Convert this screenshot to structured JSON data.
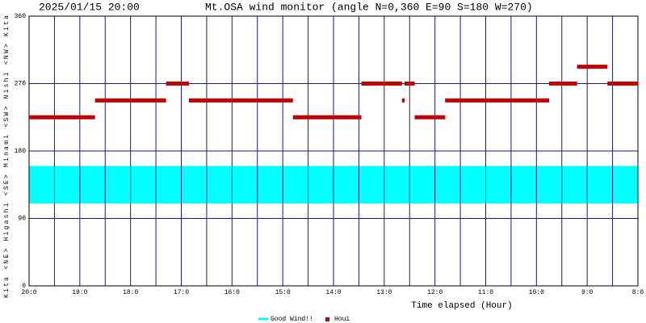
{
  "chart_data": {
    "type": "interval",
    "date": "2025/01/15 20:00",
    "title": "Mt.OSA wind monitor (angle N=0,360 E=90 S=180 W=270)",
    "y_label": "Kita <NE> Higashi <SE> Minami <SW> Nishi <NW> Kita",
    "x_label": "Time elapsed (Hour)",
    "xlim": [
      20,
      8
    ],
    "xticks": [
      {
        "value": 20,
        "label": "20:0"
      },
      {
        "value": 19,
        "label": "19:0"
      },
      {
        "value": 18,
        "label": "18:0"
      },
      {
        "value": 17,
        "label": "17:0"
      },
      {
        "value": 16,
        "label": "16:0"
      },
      {
        "value": 15,
        "label": "15:0"
      },
      {
        "value": 14,
        "label": "14:0"
      },
      {
        "value": 13,
        "label": "13:0"
      },
      {
        "value": 12,
        "label": "12:0"
      },
      {
        "value": 11,
        "label": "11:0"
      },
      {
        "value": 10,
        "label": "10:0"
      },
      {
        "value": 9,
        "label": "9:0"
      },
      {
        "value": 8,
        "label": "8:0"
      }
    ],
    "ylim": [
      0,
      360
    ],
    "yticks": [
      0,
      90,
      180,
      270,
      360
    ],
    "grid": true,
    "band": {
      "name": "Good Wind!!",
      "color": "#00ffff",
      "low": 110,
      "high": 160
    },
    "series": [
      {
        "name": "Houi",
        "color": "#c00000",
        "start": [
          20,
          18.7,
          17.3,
          16.85,
          14.8,
          13.45,
          12.65,
          12.6,
          12.4,
          11.8,
          9.75,
          9.2,
          8.6
        ],
        "end": [
          18.7,
          17.3,
          16.85,
          14.8,
          13.45,
          12.65,
          12.6,
          12.4,
          11.8,
          9.75,
          9.2,
          8.6,
          8
        ],
        "values": [
          225,
          247.5,
          270,
          247.5,
          225,
          270,
          247.5,
          270,
          225,
          247.5,
          270,
          292.5,
          270
        ]
      }
    ]
  }
}
